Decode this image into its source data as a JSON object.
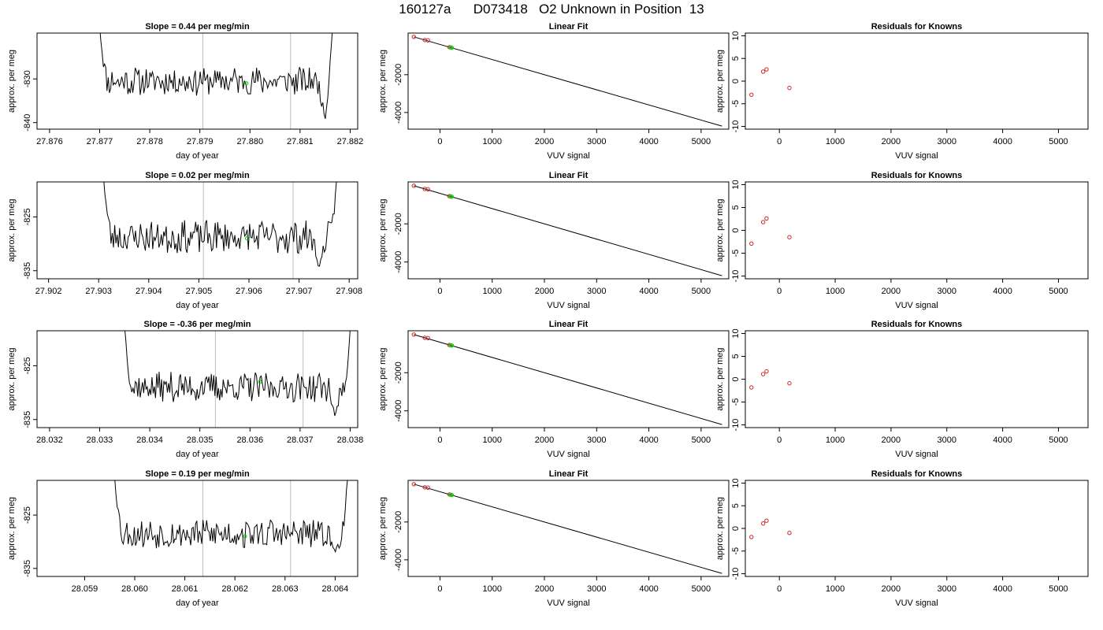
{
  "page": {
    "title": "160127a      D073418   O2 Unknown in Position  13"
  },
  "colors": {
    "axis": "#000000",
    "trace": "#000000",
    "vline": "#bebebe",
    "known_point": "#cd2626",
    "unknown_point": "#00cd00"
  },
  "chart_data": [
    {
      "type": "line",
      "title": "Slope =  0.44  per meg/min",
      "xlabel": "day of year",
      "ylabel": "approx. per meg",
      "xlim": [
        27.87575,
        27.88215
      ],
      "ylim": [
        -841.5,
        -819.5
      ],
      "xticks": [
        27.876,
        27.877,
        27.878,
        27.879,
        27.88,
        27.881,
        27.882
      ],
      "xtick_labels": [
        "27.876",
        "27.877",
        "27.878",
        "27.879",
        "27.880",
        "27.881",
        "27.882"
      ],
      "yticks": [
        -840,
        -830
      ],
      "ytick_labels": [
        "-840",
        "-830"
      ],
      "vlines": [
        27.87906,
        27.88081
      ],
      "marker": {
        "x": 27.87993,
        "y": -831
      },
      "trace": {
        "x0": 27.877,
        "x1": 27.88165,
        "ymin": -834.0,
        "ymax": -827.0,
        "seed": 11,
        "left_start": -818,
        "right_end": -818,
        "dip_x": 27.8815,
        "dip_y": -839.5
      }
    },
    {
      "type": "line",
      "title": "Linear Fit",
      "xlabel": "VUV signal",
      "ylabel": "approx. per meg",
      "xlim": [
        -610,
        5530
      ],
      "ylim": [
        -4880,
        200
      ],
      "xticks": [
        0,
        1000,
        2000,
        3000,
        4000,
        5000
      ],
      "xtick_labels": [
        "0",
        "1000",
        "2000",
        "3000",
        "4000",
        "5000"
      ],
      "yticks": [
        -4000,
        -2000
      ],
      "ytick_labels": [
        "-4000",
        "-2000"
      ],
      "fit_line": {
        "x": [
          -500,
          5400
        ],
        "y": [
          0,
          -4720
        ]
      },
      "known_points": {
        "x": [
          -500,
          -290,
          -230,
          180
        ],
        "y": [
          0,
          -168,
          -185,
          -545
        ]
      },
      "unknown_points": {
        "x": [
          205,
          225
        ],
        "y": [
          -562,
          -575
        ]
      }
    },
    {
      "type": "scatter",
      "title": "Residuals for Knowns",
      "xlabel": "VUV signal",
      "ylabel": "approx. per meg",
      "xlim": [
        -610,
        5530
      ],
      "ylim": [
        -10.6,
        10.6
      ],
      "xticks": [
        0,
        1000,
        2000,
        3000,
        4000,
        5000
      ],
      "xtick_labels": [
        "0",
        "1000",
        "2000",
        "3000",
        "4000",
        "5000"
      ],
      "yticks": [
        -10,
        -5,
        0,
        5,
        10
      ],
      "ytick_labels": [
        "-10",
        "-5",
        "0",
        "5",
        "10"
      ],
      "points": {
        "x": [
          -500,
          -290,
          -230,
          180
        ],
        "y": [
          -3.0,
          2.1,
          2.6,
          -1.5
        ]
      }
    },
    {
      "type": "line",
      "title": "Slope =  0.02  per meg/min",
      "xlabel": "day of year",
      "ylabel": "approx. per meg",
      "xlim": [
        27.90177,
        27.90817
      ],
      "ylim": [
        -836.5,
        -818.5
      ],
      "xticks": [
        27.902,
        27.903,
        27.904,
        27.905,
        27.906,
        27.907,
        27.908
      ],
      "xtick_labels": [
        "27.902",
        "27.903",
        "27.904",
        "27.905",
        "27.906",
        "27.907",
        "27.908"
      ],
      "yticks": [
        -835,
        -825
      ],
      "ytick_labels": [
        "-835",
        "-825"
      ],
      "vlines": [
        27.90509,
        27.90688
      ],
      "marker": {
        "x": 27.90596,
        "y": -829
      },
      "trace": {
        "x0": 27.9031,
        "x1": 27.90775,
        "ymin": -832.0,
        "ymax": -825.5,
        "seed": 23,
        "left_start": -818,
        "right_end": -818,
        "dip_x": 27.9074,
        "dip_y": -834.5
      }
    },
    {
      "type": "line",
      "title": "Linear Fit",
      "xlabel": "VUV signal",
      "ylabel": "approx. per meg",
      "xlim": [
        -610,
        5530
      ],
      "ylim": [
        -4880,
        200
      ],
      "xticks": [
        0,
        1000,
        2000,
        3000,
        4000,
        5000
      ],
      "xtick_labels": [
        "0",
        "1000",
        "2000",
        "3000",
        "4000",
        "5000"
      ],
      "yticks": [
        -4000,
        -2000
      ],
      "ytick_labels": [
        "-4000",
        "-2000"
      ],
      "fit_line": {
        "x": [
          -500,
          5400
        ],
        "y": [
          0,
          -4720
        ]
      },
      "known_points": {
        "x": [
          -500,
          -290,
          -230,
          180
        ],
        "y": [
          0,
          -168,
          -185,
          -545
        ]
      },
      "unknown_points": {
        "x": [
          205,
          225
        ],
        "y": [
          -562,
          -575
        ]
      }
    },
    {
      "type": "scatter",
      "title": "Residuals for Knowns",
      "xlabel": "VUV signal",
      "ylabel": "approx. per meg",
      "xlim": [
        -610,
        5530
      ],
      "ylim": [
        -10.6,
        10.6
      ],
      "xticks": [
        0,
        1000,
        2000,
        3000,
        4000,
        5000
      ],
      "xtick_labels": [
        "0",
        "1000",
        "2000",
        "3000",
        "4000",
        "5000"
      ],
      "yticks": [
        -10,
        -5,
        0,
        5,
        10
      ],
      "ytick_labels": [
        "-10",
        "-5",
        "0",
        "5",
        "10"
      ],
      "points": {
        "x": [
          -500,
          -290,
          -230,
          180
        ],
        "y": [
          -2.9,
          1.8,
          2.6,
          -1.5
        ]
      }
    },
    {
      "type": "line",
      "title": "Slope =  -0.36  per meg/min",
      "xlabel": "day of year",
      "ylabel": "approx. per meg",
      "xlim": [
        28.03175,
        28.03815
      ],
      "ylim": [
        -836.5,
        -818.5
      ],
      "xticks": [
        28.032,
        28.033,
        28.034,
        28.035,
        28.036,
        28.037,
        28.038
      ],
      "xtick_labels": [
        "28.032",
        "28.033",
        "28.034",
        "28.035",
        "28.036",
        "28.037",
        "28.038"
      ],
      "yticks": [
        -835,
        -825
      ],
      "ytick_labels": [
        "-835",
        "-825"
      ],
      "vlines": [
        28.03531,
        28.03706
      ],
      "marker": {
        "x": 28.0362,
        "y": -828
      },
      "trace": {
        "x0": 28.0335,
        "x1": 28.038,
        "ymin": -832.0,
        "ymax": -826.0,
        "seed": 37,
        "left_start": -818,
        "right_end": -818,
        "dip_x": 28.0377,
        "dip_y": -834.5
      }
    },
    {
      "type": "line",
      "title": "Linear Fit",
      "xlabel": "VUV signal",
      "ylabel": "approx. per meg",
      "xlim": [
        -610,
        5530
      ],
      "ylim": [
        -4880,
        200
      ],
      "xticks": [
        0,
        1000,
        2000,
        3000,
        4000,
        5000
      ],
      "xtick_labels": [
        "0",
        "1000",
        "2000",
        "3000",
        "4000",
        "5000"
      ],
      "yticks": [
        -4000,
        -2000
      ],
      "ytick_labels": [
        "-4000",
        "-2000"
      ],
      "fit_line": {
        "x": [
          -500,
          5400
        ],
        "y": [
          0,
          -4720
        ]
      },
      "known_points": {
        "x": [
          -500,
          -290,
          -230,
          180
        ],
        "y": [
          0,
          -168,
          -185,
          -545
        ]
      },
      "unknown_points": {
        "x": [
          205,
          225
        ],
        "y": [
          -562,
          -575
        ]
      }
    },
    {
      "type": "scatter",
      "title": "Residuals for Knowns",
      "xlabel": "VUV signal",
      "ylabel": "approx. per meg",
      "xlim": [
        -610,
        5530
      ],
      "ylim": [
        -10.6,
        10.6
      ],
      "xticks": [
        0,
        1000,
        2000,
        3000,
        4000,
        5000
      ],
      "xtick_labels": [
        "0",
        "1000",
        "2000",
        "3000",
        "4000",
        "5000"
      ],
      "yticks": [
        -10,
        -5,
        0,
        5,
        10
      ],
      "ytick_labels": [
        "-10",
        "-5",
        "0",
        "5",
        "10"
      ],
      "points": {
        "x": [
          -500,
          -290,
          -230,
          180
        ],
        "y": [
          -1.8,
          1.1,
          1.7,
          -0.9
        ]
      }
    },
    {
      "type": "line",
      "title": "Slope =  0.19  per meg/min",
      "xlabel": "day of year",
      "ylabel": "approx. per meg",
      "xlim": [
        28.05805,
        28.06445
      ],
      "ylim": [
        -836.5,
        -818.5
      ],
      "xticks": [
        28.059,
        28.06,
        28.061,
        28.062,
        28.063,
        28.064
      ],
      "xtick_labels": [
        "28.059",
        "28.060",
        "28.061",
        "28.062",
        "28.063",
        "28.064"
      ],
      "yticks": [
        -835,
        -825
      ],
      "ytick_labels": [
        "-835",
        "-825"
      ],
      "vlines": [
        28.06136,
        28.06311
      ],
      "marker": {
        "x": 28.0622,
        "y": -829
      },
      "trace": {
        "x0": 28.0596,
        "x1": 28.06425,
        "ymin": -831.5,
        "ymax": -825.5,
        "seed": 53,
        "left_start": -818,
        "right_end": -818,
        "dip_x": 28.064,
        "dip_y": -832.0
      }
    },
    {
      "type": "line",
      "title": "Linear Fit",
      "xlabel": "VUV signal",
      "ylabel": "approx. per meg",
      "xlim": [
        -610,
        5530
      ],
      "ylim": [
        -4880,
        200
      ],
      "xticks": [
        0,
        1000,
        2000,
        3000,
        4000,
        5000
      ],
      "xtick_labels": [
        "0",
        "1000",
        "2000",
        "3000",
        "4000",
        "5000"
      ],
      "yticks": [
        -4000,
        -2000
      ],
      "ytick_labels": [
        "-4000",
        "-2000"
      ],
      "fit_line": {
        "x": [
          -500,
          5400
        ],
        "y": [
          0,
          -4720
        ]
      },
      "known_points": {
        "x": [
          -500,
          -290,
          -230,
          180
        ],
        "y": [
          0,
          -168,
          -185,
          -545
        ]
      },
      "unknown_points": {
        "x": [
          205,
          225
        ],
        "y": [
          -562,
          -575
        ]
      }
    },
    {
      "type": "scatter",
      "title": "Residuals for Knowns",
      "xlabel": "VUV signal",
      "ylabel": "approx. per meg",
      "xlim": [
        -610,
        5530
      ],
      "ylim": [
        -10.6,
        10.6
      ],
      "xticks": [
        0,
        1000,
        2000,
        3000,
        4000,
        5000
      ],
      "xtick_labels": [
        "0",
        "1000",
        "2000",
        "3000",
        "4000",
        "5000"
      ],
      "yticks": [
        -10,
        -5,
        0,
        5,
        10
      ],
      "ytick_labels": [
        "-10",
        "-5",
        "0",
        "5",
        "10"
      ],
      "points": {
        "x": [
          -500,
          -290,
          -230,
          180
        ],
        "y": [
          -1.9,
          1.1,
          1.7,
          -1.0
        ]
      }
    }
  ]
}
